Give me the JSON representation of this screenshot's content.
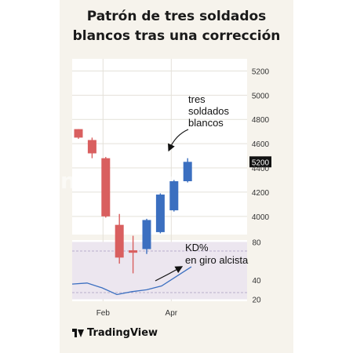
{
  "title_line1": "Patrón de tres soldados",
  "title_line2": "blancos tras una corrección",
  "watermark": "InvertirEnBolsa",
  "brand": "TradingView",
  "colors": {
    "bull": "#3b6fc0",
    "bear": "#d95f5f",
    "kd": "#3b6fc0",
    "kd_band": "#ece6ef",
    "grid": "#e4e1d9"
  },
  "chart_data": [
    {
      "type": "candlestick",
      "title": "",
      "ylim": [
        3850,
        5300
      ],
      "y_ticks": [
        5200,
        5000,
        4800,
        4600,
        4400,
        4200,
        4000
      ],
      "price_labels": [
        "5200",
        "5000",
        "4800",
        "4600",
        "5200",
        "4400",
        "4200",
        "4000"
      ],
      "price_tag": "5200",
      "x_ticks": [
        {
          "label": "Feb",
          "index": 1.8
        },
        {
          "label": "Apr",
          "index": 6.8
        }
      ],
      "candles": [
        {
          "open": 4720,
          "close": 4650,
          "high": 4720,
          "low": 4640
        },
        {
          "open": 4630,
          "close": 4520,
          "high": 4650,
          "low": 4480
        },
        {
          "open": 4480,
          "close": 4000,
          "high": 4490,
          "low": 3990
        },
        {
          "open": 3930,
          "close": 3660,
          "high": 4020,
          "low": 3610
        },
        {
          "open": 3720,
          "close": 3700,
          "high": 3840,
          "low": 3530
        },
        {
          "open": 3730,
          "close": 3970,
          "high": 3980,
          "low": 3690
        },
        {
          "open": 3870,
          "close": 4180,
          "high": 4190,
          "low": 3860
        },
        {
          "open": 4050,
          "close": 4290,
          "high": 4300,
          "low": 4040
        },
        {
          "open": 4290,
          "close": 4450,
          "high": 4480,
          "low": 4280
        }
      ],
      "annotation": {
        "lines": [
          "tres",
          "soldados",
          "blancos"
        ]
      }
    },
    {
      "type": "line",
      "title": "",
      "series": [
        {
          "x": [
            0,
            1,
            2,
            3,
            4,
            5,
            6,
            7,
            8
          ],
          "values": [
            36,
            37,
            32,
            25,
            28,
            30,
            34,
            44,
            54
          ]
        }
      ],
      "ylim": [
        18,
        82
      ],
      "y_ticks": [
        80,
        40,
        20
      ],
      "band": [
        20,
        80
      ],
      "annotation": {
        "lines": [
          "KD%",
          "en giro alcista"
        ]
      }
    }
  ]
}
